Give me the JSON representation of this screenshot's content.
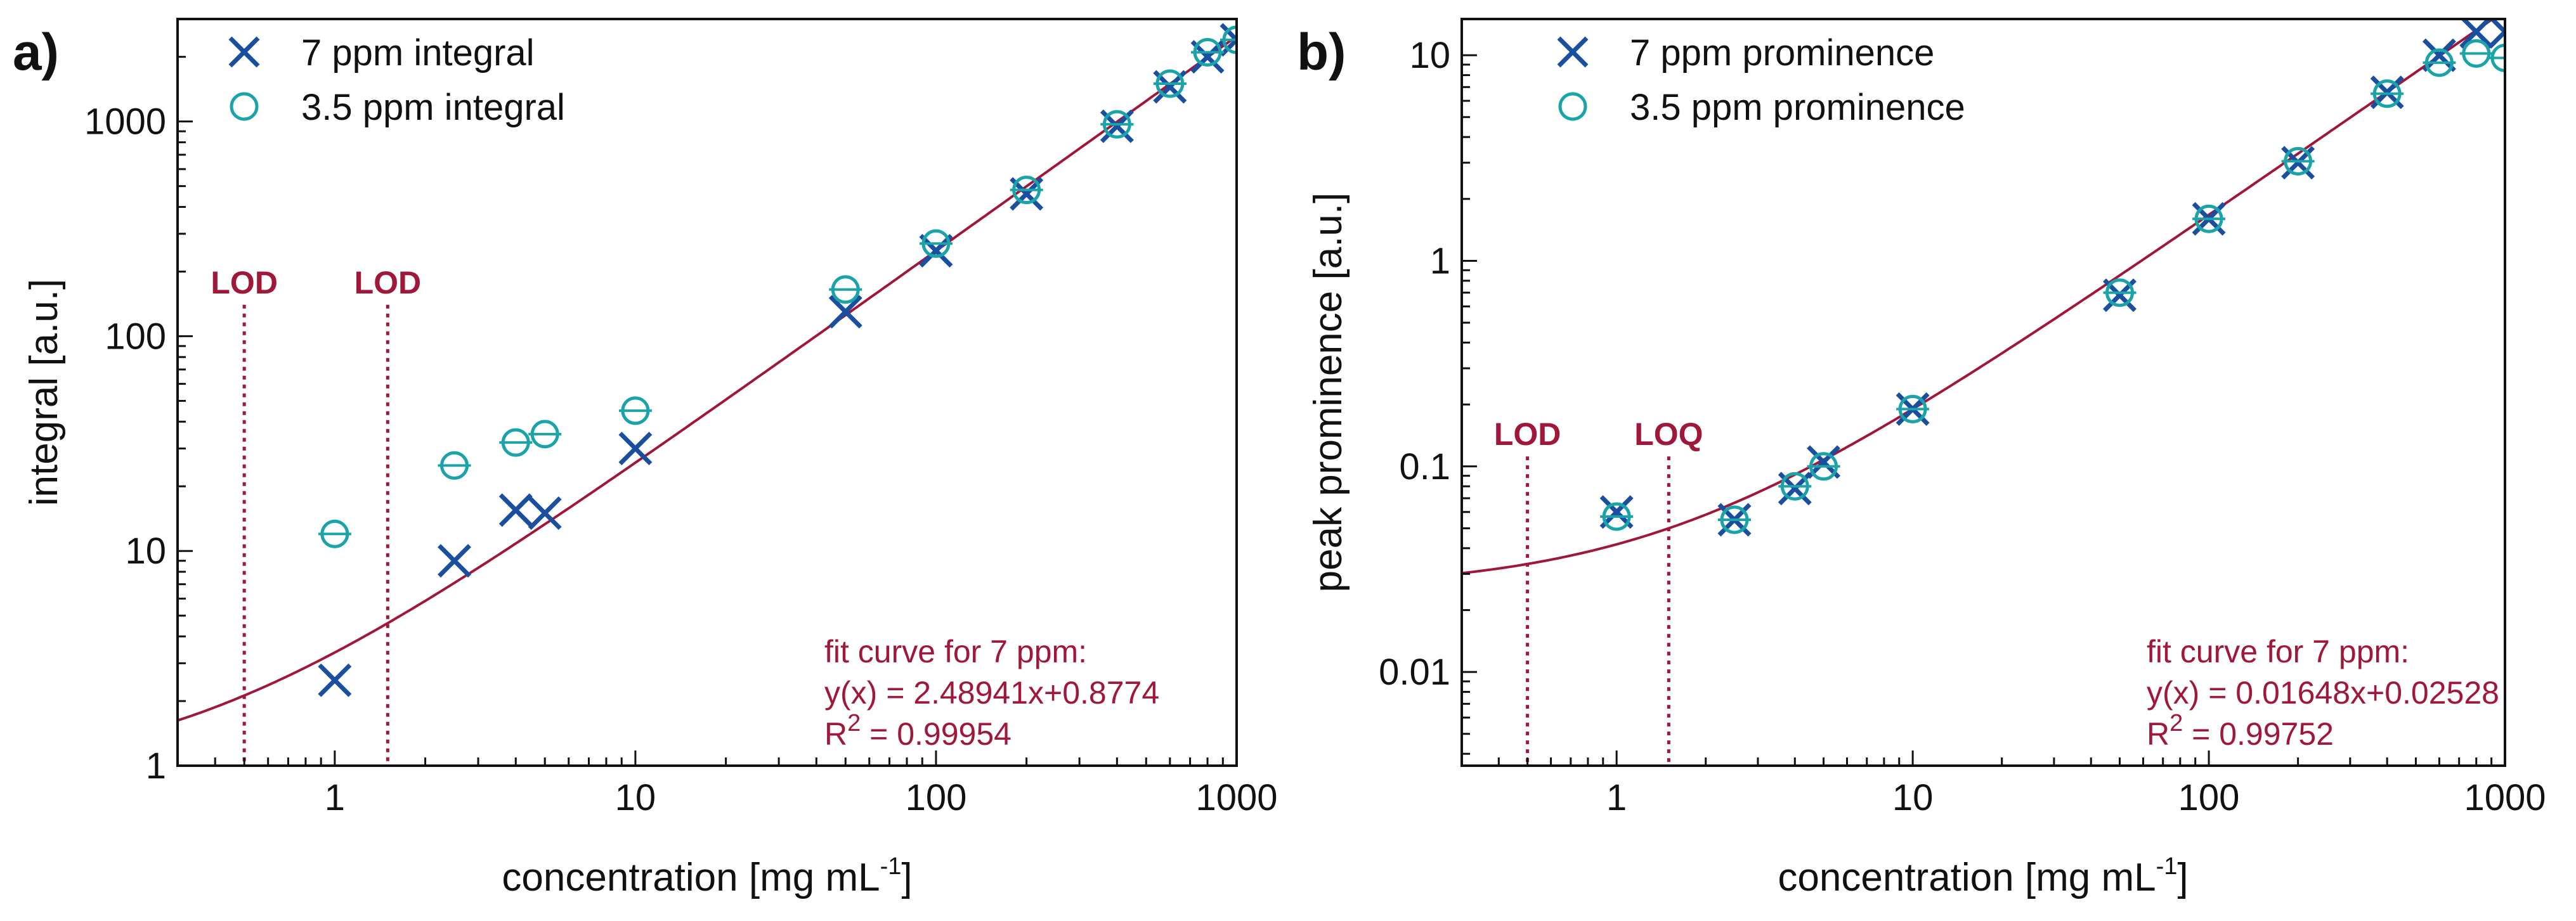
{
  "colors": {
    "series_x": "#1a4fa0",
    "series_o": "#1aa3a8",
    "fit": "#a0173a",
    "axis": "#111111"
  },
  "chart_data": [
    {
      "type": "scatter",
      "panel_label": "a)",
      "xlabel": "concentration [mg mL",
      "xlabel_sup": "-1",
      "xlabel_end": "]",
      "ylabel": "integral [a.u.]",
      "xscale": "log",
      "yscale": "log",
      "xlim": [
        0.3,
        1000
      ],
      "ylim": [
        1,
        3000
      ],
      "xticks": [
        1,
        10,
        100,
        1000
      ],
      "xtick_labels": [
        "1",
        "10",
        "100",
        "1000"
      ],
      "yticks": [
        1,
        10,
        100,
        1000
      ],
      "ytick_labels": [
        "1",
        "10",
        "100",
        "1000"
      ],
      "series": [
        {
          "name": "7 ppm integral",
          "marker": "x",
          "x": [
            1,
            2.5,
            4,
            5,
            10,
            50,
            100,
            200,
            400,
            600,
            800,
            1000
          ],
          "y": [
            2.5,
            9,
            15.5,
            15,
            30,
            130,
            250,
            460,
            950,
            1450,
            2000,
            2400
          ]
        },
        {
          "name": "3.5 ppm integral",
          "marker": "o",
          "x": [
            1,
            2.5,
            4,
            5,
            10,
            50,
            100,
            200,
            400,
            600,
            800,
            1000
          ],
          "y": [
            12,
            25,
            32,
            35,
            45,
            165,
            270,
            480,
            970,
            1500,
            2100,
            2400
          ]
        }
      ],
      "fit": {
        "slope": 2.48941,
        "intercept": 0.8774
      },
      "fit_annotation": [
        "fit curve for 7 ppm:",
        "y(x) = 2.48941x+0.8774",
        "R",
        "2",
        " = 0.99954"
      ],
      "markers": [
        {
          "label": "LOD",
          "x": 0.5,
          "top_y": 150
        },
        {
          "label": "LOD",
          "x": 1.5,
          "top_y": 150
        }
      ]
    },
    {
      "type": "scatter",
      "panel_label": "b)",
      "xlabel": "concentration [mg mL",
      "xlabel_sup": "-1",
      "xlabel_end": "]",
      "ylabel": "peak prominence [a.u.]",
      "xscale": "log",
      "yscale": "log",
      "xlim": [
        0.3,
        1000
      ],
      "ylim": [
        0.0035,
        15
      ],
      "xticks": [
        1,
        10,
        100,
        1000
      ],
      "xtick_labels": [
        "1",
        "10",
        "100",
        "1000"
      ],
      "yticks": [
        0.01,
        0.1,
        1,
        10
      ],
      "ytick_labels": [
        "0.01",
        "0.1",
        "1",
        "10"
      ],
      "series": [
        {
          "name": "7 ppm prominence",
          "marker": "x",
          "x": [
            1,
            2.5,
            4,
            5,
            10,
            50,
            100,
            200,
            400,
            600,
            800,
            1000
          ],
          "y": [
            0.06,
            0.055,
            0.078,
            0.105,
            0.19,
            0.68,
            1.6,
            3.0,
            6.6,
            10,
            13,
            13
          ]
        },
        {
          "name": "3.5 ppm prominence",
          "marker": "o",
          "x": [
            1,
            2.5,
            4,
            5,
            10,
            50,
            100,
            200,
            400,
            600,
            800,
            1000
          ],
          "y": [
            0.057,
            0.055,
            0.08,
            0.1,
            0.19,
            0.7,
            1.6,
            3.05,
            6.5,
            9.2,
            10.2,
            9.7
          ]
        }
      ],
      "fit": {
        "slope": 0.01648,
        "intercept": 0.02528
      },
      "fit_annotation": [
        "fit curve for 7 ppm:",
        "y(x) = 0.01648x+0.02528",
        "R",
        "2",
        " = 0.99752"
      ],
      "markers": [
        {
          "label": "LOD",
          "x": 0.5,
          "top_y": 0.12
        },
        {
          "label": "LOQ",
          "x": 1.5,
          "top_y": 0.12
        }
      ]
    }
  ]
}
